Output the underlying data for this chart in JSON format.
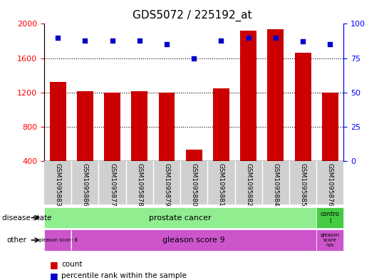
{
  "title": "GDS5072 / 225192_at",
  "samples": [
    "GSM1095883",
    "GSM1095886",
    "GSM1095877",
    "GSM1095878",
    "GSM1095879",
    "GSM1095880",
    "GSM1095881",
    "GSM1095882",
    "GSM1095884",
    "GSM1095885",
    "GSM1095876"
  ],
  "counts": [
    1320,
    1210,
    1200,
    1215,
    1200,
    530,
    1250,
    1920,
    1940,
    1660,
    1200
  ],
  "percentile_ranks": [
    90,
    88,
    88,
    88,
    85,
    75,
    88,
    90,
    90,
    87,
    85
  ],
  "ylim_left": [
    400,
    2000
  ],
  "ylim_right": [
    0,
    100
  ],
  "yticks_left": [
    400,
    800,
    1200,
    1600,
    2000
  ],
  "yticks_right": [
    0,
    25,
    50,
    75,
    100
  ],
  "bar_color": "#cc0000",
  "dot_color": "#0000cc",
  "disease_state_prostate": "prostate cancer",
  "disease_state_control": "contro\nl",
  "other_gleason8": "gleason score 8",
  "other_gleason9": "gleason score 9",
  "other_na": "gleason\nscore\nn/a",
  "color_green_light": "#90ee90",
  "color_green_control": "#44cc44",
  "color_magenta": "#cc55cc",
  "color_gray": "#d0d0d0",
  "legend_count": "count",
  "legend_percentile": "percentile rank within the sample"
}
